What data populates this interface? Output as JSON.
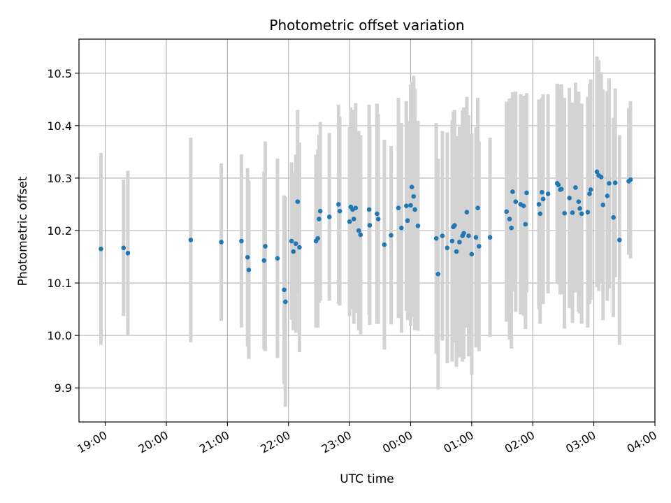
{
  "chart_data": {
    "type": "scatter",
    "title": "Photometric offset variation",
    "xlabel": "UTC time",
    "ylabel": "Photometric offset",
    "x_unit": "hours",
    "xlim": [
      18.57,
      28.0
    ],
    "ylim": [
      9.835,
      10.565
    ],
    "grid": true,
    "x_ticks": [
      {
        "value": 19,
        "label": "19:00"
      },
      {
        "value": 20,
        "label": "20:00"
      },
      {
        "value": 21,
        "label": "21:00"
      },
      {
        "value": 22,
        "label": "22:00"
      },
      {
        "value": 23,
        "label": "23:00"
      },
      {
        "value": 24,
        "label": "00:00"
      },
      {
        "value": 25,
        "label": "01:00"
      },
      {
        "value": 26,
        "label": "02:00"
      },
      {
        "value": 27,
        "label": "03:00"
      },
      {
        "value": 28,
        "label": "04:00"
      }
    ],
    "y_ticks": [
      {
        "value": 9.9,
        "label": "9.9"
      },
      {
        "value": 10.0,
        "label": "10.0"
      },
      {
        "value": 10.1,
        "label": "10.1"
      },
      {
        "value": 10.2,
        "label": "10.2"
      },
      {
        "value": 10.3,
        "label": "10.3"
      },
      {
        "value": 10.4,
        "label": "10.4"
      },
      {
        "value": 10.5,
        "label": "10.5"
      }
    ],
    "colors": {
      "point": "#1f77b4",
      "errorbar": "#d3d3d3",
      "grid": "#b0b0b0"
    },
    "series": [
      {
        "points": [
          [
            18.93,
            10.165,
            0.183
          ],
          [
            19.3,
            10.167,
            0.13
          ],
          [
            19.37,
            10.157,
            0.157
          ],
          [
            20.4,
            10.182,
            0.195
          ],
          [
            20.9,
            10.178,
            0.15
          ],
          [
            21.23,
            10.18,
            0.165
          ],
          [
            21.33,
            10.149,
            0.17
          ],
          [
            21.35,
            10.125,
            0.17
          ],
          [
            21.6,
            10.143,
            0.17
          ],
          [
            21.62,
            10.17,
            0.2
          ],
          [
            21.82,
            10.147,
            0.19
          ],
          [
            21.93,
            10.087,
            0.18
          ],
          [
            21.95,
            10.064,
            0.2
          ],
          [
            22.05,
            10.18,
            0.15
          ],
          [
            22.08,
            10.16,
            0.15
          ],
          [
            22.12,
            10.175,
            0.17
          ],
          [
            22.15,
            10.255,
            0.175
          ],
          [
            22.18,
            10.168,
            0.2
          ],
          [
            22.45,
            10.18,
            0.165
          ],
          [
            22.48,
            10.185,
            0.17
          ],
          [
            22.5,
            10.222,
            0.16
          ],
          [
            22.52,
            10.237,
            0.17
          ],
          [
            22.67,
            10.226,
            0.16
          ],
          [
            22.82,
            10.25,
            0.19
          ],
          [
            22.84,
            10.237,
            0.18
          ],
          [
            23.0,
            10.217,
            0.18
          ],
          [
            23.02,
            10.245,
            0.19
          ],
          [
            23.05,
            10.24,
            0.19
          ],
          [
            23.07,
            10.222,
            0.2
          ],
          [
            23.1,
            10.243,
            0.2
          ],
          [
            23.15,
            10.2,
            0.19
          ],
          [
            23.18,
            10.192,
            0.19
          ],
          [
            23.32,
            10.24,
            0.2
          ],
          [
            23.33,
            10.21,
            0.19
          ],
          [
            23.45,
            10.232,
            0.21
          ],
          [
            23.47,
            10.222,
            0.2
          ],
          [
            23.57,
            10.173,
            0.2
          ],
          [
            23.68,
            10.191,
            0.17
          ],
          [
            23.8,
            10.243,
            0.21
          ],
          [
            23.85,
            10.205,
            0.2
          ],
          [
            23.93,
            10.247,
            0.2
          ],
          [
            23.95,
            10.219,
            0.19
          ],
          [
            24.0,
            10.248,
            0.23
          ],
          [
            24.02,
            10.283,
            0.2
          ],
          [
            24.05,
            10.265,
            0.23
          ],
          [
            24.07,
            10.24,
            0.23
          ],
          [
            24.12,
            10.209,
            0.2
          ],
          [
            24.42,
            10.185,
            0.22
          ],
          [
            24.45,
            10.117,
            0.22
          ],
          [
            24.52,
            10.19,
            0.2
          ],
          [
            24.6,
            10.167,
            0.22
          ],
          [
            24.68,
            10.18,
            0.23
          ],
          [
            24.7,
            10.207,
            0.22
          ],
          [
            24.72,
            10.21,
            0.22
          ],
          [
            24.75,
            10.16,
            0.22
          ],
          [
            24.8,
            10.178,
            0.22
          ],
          [
            24.85,
            10.19,
            0.24
          ],
          [
            24.87,
            10.195,
            0.24
          ],
          [
            24.92,
            10.235,
            0.22
          ],
          [
            24.95,
            10.19,
            0.23
          ],
          [
            25.0,
            10.155,
            0.23
          ],
          [
            25.07,
            10.187,
            0.21
          ],
          [
            25.1,
            10.243,
            0.21
          ],
          [
            25.12,
            10.17,
            0.2
          ],
          [
            25.3,
            10.187,
            0.19
          ],
          [
            25.57,
            10.236,
            0.21
          ],
          [
            25.62,
            10.222,
            0.23
          ],
          [
            25.65,
            10.205,
            0.23
          ],
          [
            25.67,
            10.274,
            0.19
          ],
          [
            25.72,
            10.255,
            0.21
          ],
          [
            25.8,
            10.25,
            0.21
          ],
          [
            25.85,
            10.247,
            0.21
          ],
          [
            25.88,
            10.212,
            0.2
          ],
          [
            25.9,
            10.272,
            0.19
          ],
          [
            26.1,
            10.25,
            0.2
          ],
          [
            26.12,
            10.232,
            0.21
          ],
          [
            26.15,
            10.273,
            0.18
          ],
          [
            26.17,
            10.26,
            0.2
          ],
          [
            26.25,
            10.27,
            0.19
          ],
          [
            26.4,
            10.29,
            0.19
          ],
          [
            26.42,
            10.287,
            0.19
          ],
          [
            26.45,
            10.278,
            0.2
          ],
          [
            26.47,
            10.279,
            0.2
          ],
          [
            26.52,
            10.233,
            0.22
          ],
          [
            26.6,
            10.262,
            0.21
          ],
          [
            26.65,
            10.234,
            0.21
          ],
          [
            26.7,
            10.282,
            0.2
          ],
          [
            26.75,
            10.255,
            0.21
          ],
          [
            26.77,
            10.242,
            0.2
          ],
          [
            26.8,
            10.232,
            0.21
          ],
          [
            26.9,
            10.235,
            0.22
          ],
          [
            26.93,
            10.27,
            0.21
          ],
          [
            26.95,
            10.278,
            0.21
          ],
          [
            27.05,
            10.312,
            0.22
          ],
          [
            27.08,
            10.305,
            0.22
          ],
          [
            27.12,
            10.302,
            0.2
          ],
          [
            27.15,
            10.249,
            0.22
          ],
          [
            27.22,
            10.266,
            0.2
          ],
          [
            27.25,
            10.29,
            0.2
          ],
          [
            27.32,
            10.225,
            0.19
          ],
          [
            27.35,
            10.291,
            0.18
          ],
          [
            27.42,
            10.182,
            0.2
          ],
          [
            27.57,
            10.294,
            0.14
          ],
          [
            27.6,
            10.297,
            0.15
          ]
        ]
      }
    ]
  }
}
